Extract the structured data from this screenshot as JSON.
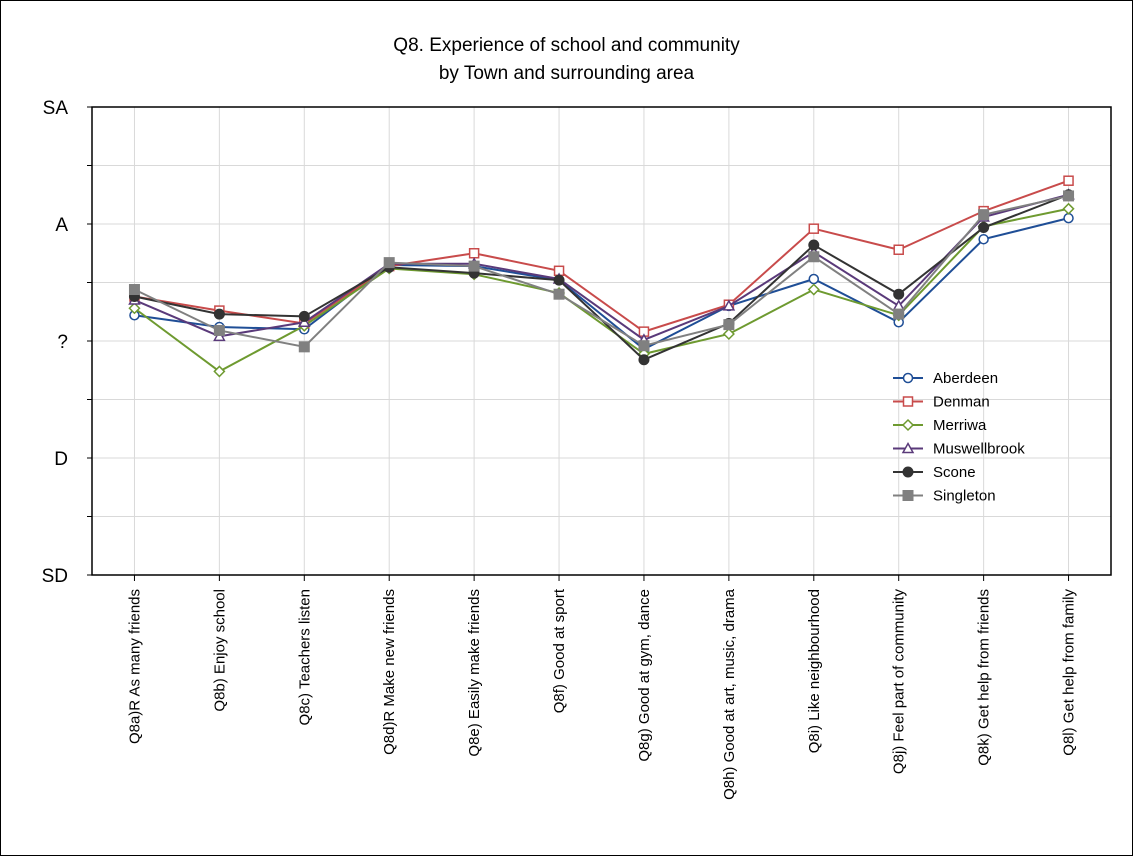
{
  "chart_data": {
    "type": "line",
    "title_line1": "Q8. Experience of school and community",
    "title_line2": "by Town and surrounding area",
    "xlabel": "",
    "ylabel": "",
    "y_ticks": [
      {
        "value": 5,
        "label": "SA"
      },
      {
        "value": 4,
        "label": "A"
      },
      {
        "value": 3,
        "label": "?"
      },
      {
        "value": 2,
        "label": "D"
      },
      {
        "value": 1,
        "label": "SD"
      }
    ],
    "ylim": [
      1,
      5
    ],
    "grid": true,
    "legend_position": "right",
    "categories": [
      "Q8a)R As many friends",
      "Q8b) Enjoy school",
      "Q8c) Teachers listen",
      "Q8d)R Make new friends",
      "Q8e) Easily make friends",
      "Q8f) Good at sport",
      "Q8g) Good at gym, dance",
      "Q8h) Good at art, music, drama",
      "Q8i) Like neighbourhood",
      "Q8j) Feel part of community",
      "Q8k) Get help from friends",
      "Q8l) Get help from family"
    ],
    "series": [
      {
        "name": "Aberdeen",
        "color": "#1f4e96",
        "marker": "circle-open",
        "values": [
          3.22,
          3.12,
          3.1,
          3.65,
          3.64,
          3.52,
          2.93,
          3.3,
          3.53,
          3.16,
          3.87,
          4.05
        ]
      },
      {
        "name": "Denman",
        "color": "#c84b4b",
        "marker": "square-open",
        "values": [
          3.38,
          3.26,
          3.15,
          3.64,
          3.75,
          3.6,
          3.08,
          3.31,
          3.96,
          3.78,
          4.11,
          4.37
        ]
      },
      {
        "name": "Merriwa",
        "color": "#6e9a30",
        "marker": "diamond-open",
        "values": [
          3.28,
          2.74,
          3.13,
          3.62,
          3.57,
          3.41,
          2.89,
          3.06,
          3.44,
          3.22,
          3.98,
          4.13
        ]
      },
      {
        "name": "Muswellbrook",
        "color": "#5a3a7a",
        "marker": "triangle-open",
        "values": [
          3.35,
          3.04,
          3.16,
          3.66,
          3.66,
          3.53,
          3.01,
          3.3,
          3.76,
          3.3,
          4.06,
          4.25
        ]
      },
      {
        "name": "Scone",
        "color": "#333333",
        "marker": "circle-filled",
        "values": [
          3.38,
          3.23,
          3.21,
          3.63,
          3.58,
          3.52,
          2.84,
          3.15,
          3.82,
          3.4,
          3.97,
          4.25
        ]
      },
      {
        "name": "Singleton",
        "color": "#808080",
        "marker": "square-filled",
        "values": [
          3.44,
          3.09,
          2.95,
          3.67,
          3.64,
          3.4,
          2.96,
          3.14,
          3.72,
          3.23,
          4.08,
          4.24
        ]
      }
    ]
  }
}
